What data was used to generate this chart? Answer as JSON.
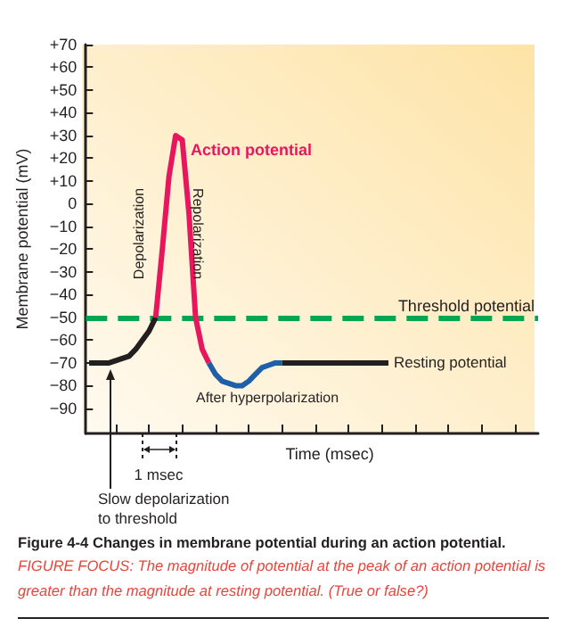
{
  "chart_data": {
    "type": "line",
    "xlabel": "Time (msec)",
    "ylabel": "Membrane potential (mV)",
    "categories": [
      null,
      null,
      null,
      null,
      null,
      null,
      null,
      null,
      null,
      null,
      null,
      null,
      null,
      null,
      null,
      null,
      null,
      null,
      null,
      null,
      null,
      null,
      null,
      null,
      null,
      null,
      null,
      null,
      null,
      null,
      null,
      null,
      null,
      null,
      null,
      null,
      null,
      null,
      null,
      null,
      null,
      null,
      null,
      null,
      null,
      null,
      null,
      null,
      null,
      null,
      null,
      null,
      null,
      null,
      null,
      null,
      null,
      null,
      null,
      null,
      null,
      null,
      null,
      null,
      null,
      null,
      null,
      null
    ],
    "ylim": [
      -101,
      70
    ],
    "yticks": [
      {
        "value": 70,
        "label": "+70"
      },
      {
        "value": 60,
        "label": "+60"
      },
      {
        "value": 50,
        "label": "+50"
      },
      {
        "value": 40,
        "label": "+40"
      },
      {
        "value": 30,
        "label": "+30"
      },
      {
        "value": 20,
        "label": "+20"
      },
      {
        "value": 10,
        "label": "+10"
      },
      {
        "value": 0,
        "label": "0"
      },
      {
        "value": -10,
        "label": "−10"
      },
      {
        "value": -20,
        "label": "−20"
      },
      {
        "value": -30,
        "label": "−30"
      },
      {
        "value": -40,
        "label": "−40"
      },
      {
        "value": -50,
        "label": "−50"
      },
      {
        "value": -60,
        "label": "−60"
      },
      {
        "value": -70,
        "label": "−70"
      },
      {
        "value": -80,
        "label": "−80"
      },
      {
        "value": -90,
        "label": "−90"
      }
    ],
    "tick_labels": "y",
    "grid": false,
    "line_style": "solid",
    "series": [
      {
        "color": "#231f20",
        "values": [
          -70,
          -70,
          -70,
          -70,
          -69,
          -68,
          -67,
          -64,
          -60,
          -56,
          -50,
          null,
          null,
          null,
          null,
          null,
          null,
          null,
          null,
          null,
          null,
          null,
          null,
          null,
          null,
          null,
          null,
          null,
          null,
          null,
          null,
          null,
          null,
          null,
          null,
          null,
          null,
          null,
          null,
          null,
          null,
          null,
          null,
          null,
          null,
          null,
          null,
          null,
          null,
          null,
          null,
          null,
          null,
          null,
          null,
          null,
          null,
          null,
          null,
          null,
          null,
          null,
          null,
          null,
          null,
          null,
          null,
          null
        ]
      },
      {
        "color": "#e8175d",
        "values": [
          null,
          null,
          null,
          null,
          null,
          null,
          null,
          null,
          null,
          null,
          -50,
          -20,
          12,
          30,
          28,
          -4,
          -50,
          -64,
          -70,
          null,
          null,
          null,
          null,
          null,
          null,
          null,
          null,
          null,
          null,
          null,
          null,
          null,
          null,
          null,
          null,
          null,
          null,
          null,
          null,
          null,
          null,
          null,
          null,
          null,
          null,
          null,
          null,
          null,
          null,
          null,
          null,
          null,
          null,
          null,
          null,
          null,
          null,
          null,
          null,
          null,
          null,
          null,
          null,
          null,
          null,
          null,
          null,
          null
        ]
      },
      {
        "color": "#1f5fa8",
        "values": [
          null,
          null,
          null,
          null,
          null,
          null,
          null,
          null,
          null,
          null,
          null,
          null,
          null,
          null,
          null,
          null,
          null,
          null,
          -70,
          -75,
          -78,
          -79,
          -80,
          -80,
          -78,
          -75,
          -72,
          -71,
          -70,
          -70,
          null,
          null,
          null,
          null,
          null,
          null,
          null,
          null,
          null,
          null,
          null,
          null,
          null,
          null,
          null,
          null,
          null,
          null,
          null,
          null,
          null,
          null,
          null,
          null,
          null,
          null,
          null,
          null,
          null,
          null,
          null,
          null,
          null,
          null,
          null,
          null,
          null,
          null
        ]
      },
      {
        "color": "#231f20",
        "values": [
          null,
          null,
          null,
          null,
          null,
          null,
          null,
          null,
          null,
          null,
          null,
          null,
          null,
          null,
          null,
          null,
          null,
          null,
          null,
          null,
          null,
          null,
          null,
          null,
          null,
          null,
          null,
          null,
          null,
          -70,
          -70,
          -70,
          -70,
          -70,
          -70,
          -70,
          -70,
          -70,
          -70,
          -70,
          -70,
          -70,
          -70,
          -70,
          -70,
          -70,
          null,
          null,
          null,
          null,
          null,
          null,
          null,
          null,
          null,
          null,
          null,
          null,
          null,
          null,
          null,
          null,
          null,
          null,
          null,
          null,
          null,
          null
        ]
      }
    ],
    "ref_lines": [
      {
        "axis": "y",
        "value": -50,
        "label": "Threshold potential",
        "color": "#00a651",
        "line_style": "dashed"
      }
    ],
    "annotations": [
      "Action potential",
      "Depolarization",
      "Repolarization",
      "After hyperpolarization",
      "Resting potential",
      "1 msec",
      "Slow depolarization to threshold",
      "Figure 4-4 Changes in membrane potential during an action potential.",
      "FIGURE FOCUS: The magnitude of potential at the peak of an action potential is greater than the magnitude at resting potential. (True or false?)"
    ]
  }
}
